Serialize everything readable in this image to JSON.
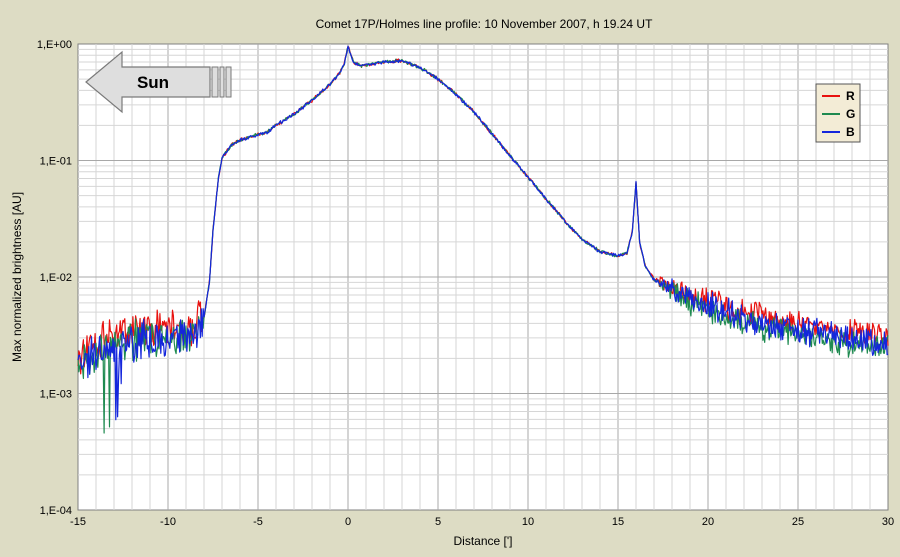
{
  "chart_data": {
    "type": "line",
    "title": "Comet 17P/Holmes line profile: 10 November 2007, h 19.24 UT",
    "xlabel": "Distance [']",
    "ylabel": "Max normalized brightness [AU]",
    "xlim": [
      -15,
      30
    ],
    "ylim": [
      0.0001,
      1
    ],
    "yscale": "log",
    "grid": true,
    "legend_position": "top-right",
    "x_ticks": [
      {
        "value": -15,
        "label": "-15"
      },
      {
        "value": -10,
        "label": "-10"
      },
      {
        "value": -5,
        "label": "-5"
      },
      {
        "value": 0,
        "label": "0"
      },
      {
        "value": 5,
        "label": "5"
      },
      {
        "value": 10,
        "label": "10"
      },
      {
        "value": 15,
        "label": "15"
      },
      {
        "value": 20,
        "label": "20"
      },
      {
        "value": 25,
        "label": "25"
      },
      {
        "value": 30,
        "label": "30"
      }
    ],
    "y_ticks": [
      {
        "value": 1,
        "label": "1,E+00"
      },
      {
        "value": 0.1,
        "label": "1,E-01"
      },
      {
        "value": 0.01,
        "label": "1,E-02"
      },
      {
        "value": 0.001,
        "label": "1,E-03"
      },
      {
        "value": 0.0001,
        "label": "1,E-04"
      }
    ],
    "annotation": {
      "text": "Sun"
    },
    "profile": {
      "x": [
        -15,
        -14,
        -13,
        -12,
        -11,
        -10,
        -9,
        -8.5,
        -8,
        -7.7,
        -7.5,
        -7.2,
        -7,
        -6.5,
        -6,
        -5.5,
        -5,
        -4.5,
        -4,
        -3,
        -2,
        -1,
        -0.5,
        -0.2,
        0,
        0.3,
        0.7,
        1,
        2,
        3,
        4,
        5,
        6,
        7,
        8,
        9,
        10,
        11,
        12,
        13,
        14,
        15,
        15.5,
        15.8,
        16,
        16.2,
        16.5,
        17,
        18,
        19,
        20,
        21,
        22,
        23,
        24,
        25,
        26,
        27,
        28,
        29,
        30
      ],
      "y": [
        0.0017,
        0.0023,
        0.0026,
        0.0028,
        0.003,
        0.0031,
        0.0031,
        0.0032,
        0.0045,
        0.009,
        0.025,
        0.07,
        0.105,
        0.135,
        0.15,
        0.158,
        0.168,
        0.175,
        0.2,
        0.25,
        0.33,
        0.45,
        0.55,
        0.68,
        0.95,
        0.7,
        0.65,
        0.66,
        0.7,
        0.72,
        0.63,
        0.5,
        0.37,
        0.26,
        0.17,
        0.11,
        0.072,
        0.047,
        0.031,
        0.021,
        0.0165,
        0.0152,
        0.016,
        0.025,
        0.065,
        0.02,
        0.0125,
        0.0095,
        0.0078,
        0.0066,
        0.0057,
        0.005,
        0.0045,
        0.0041,
        0.0038,
        0.0035,
        0.0033,
        0.0031,
        0.003,
        0.0029,
        0.0028
      ]
    },
    "series": [
      {
        "name": "R",
        "color": "#e8120f",
        "scale": 1.12,
        "seed": 3
      },
      {
        "name": "G",
        "color": "#1e8a50",
        "scale": 0.9,
        "seed": 7
      },
      {
        "name": "B",
        "color": "#1426dc",
        "scale": 1.0,
        "seed": 11
      }
    ]
  }
}
